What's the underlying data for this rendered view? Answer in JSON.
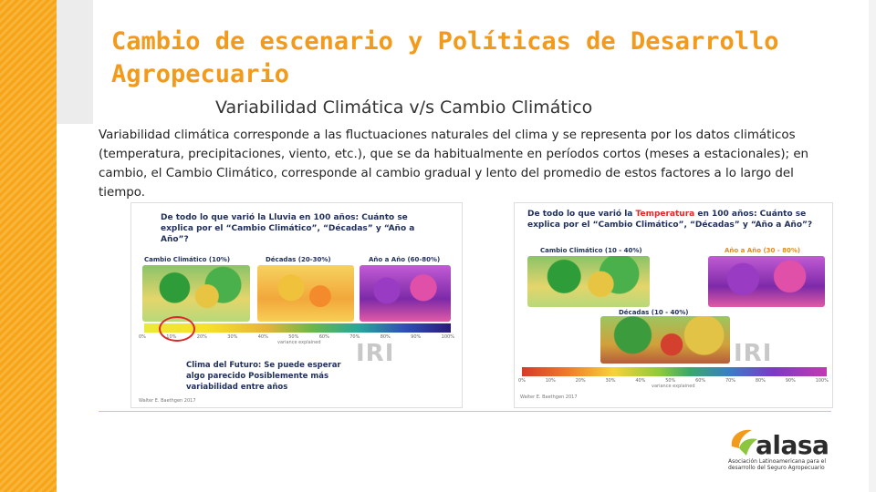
{
  "slide": {
    "title": "Cambio de escenario y Políticas de Desarrollo Agropecuario",
    "subtitle": "Variabilidad Climática v/s Cambio Climático",
    "body": "Variabilidad climática corresponde a las fluctuaciones naturales del clima y se representa por los datos climáticos (temperatura, precipitaciones, viento, etc.), que se da habitualmente en períodos cortos (meses a estacionales); en cambio, el Cambio Climático, corresponde al cambio gradual y lento del promedio de estos factores a lo largo del tiempo."
  },
  "figure_rain": {
    "title": "De todo lo que varió la Lluvia en 100 años: Cuánto se explica por el “Cambio Climático”, “Décadas” y “Año a Año”?",
    "label_cc": "Cambio Climático (10%)",
    "label_dec": "Décadas (20-30%)",
    "label_year": "Año a Año (60-80%)",
    "scale_ticks": [
      "0%",
      "10%",
      "20%",
      "30%",
      "40%",
      "50%",
      "60%",
      "70%",
      "80%",
      "90%",
      "100%"
    ],
    "scale_caption": "variance explained",
    "watermark": "IRI",
    "future_text": "Clima del Futuro: Se puede esperar algo parecido Posiblemente más variabilidad entre años",
    "credit": "Walter E. Baethgen 2017"
  },
  "figure_temp": {
    "title_pre": "De todo lo que varió la ",
    "title_highlight": "Temperatura",
    "title_post": " en 100 años: Cuánto se explica por el “Cambio Climático”, “Décadas” y “Año a Año”?",
    "label_cc": "Cambio Climático (10 - 40%)",
    "label_year": "Año a Año (30 - 80%)",
    "label_dec": "Décadas (10 - 40%)",
    "scale_ticks": [
      "0%",
      "10%",
      "20%",
      "30%",
      "40%",
      "50%",
      "60%",
      "70%",
      "80%",
      "90%",
      "100%"
    ],
    "scale_caption": "variance explained",
    "watermark": "IRI",
    "credit": "Walter E. Baethgen 2017"
  },
  "logo": {
    "word": "alasa",
    "tagline": "Asociación Latinoamericana para el desarrollo del Seguro Agropecuario"
  },
  "colors": {
    "title": "#f29a1c",
    "band": "#f6a418",
    "figure_heading": "#1f2f5a"
  }
}
